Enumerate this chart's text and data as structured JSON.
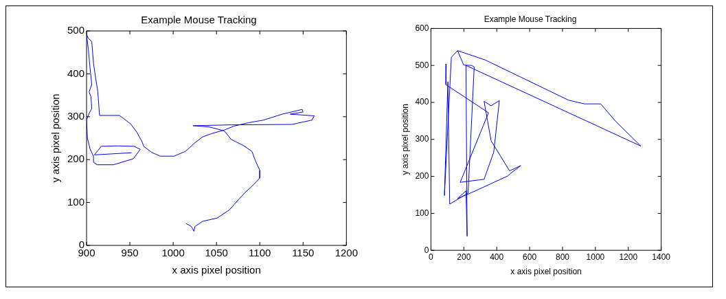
{
  "chart_data": [
    {
      "type": "line",
      "title": "Example Mouse Tracking",
      "xlabel": "x axis pixel position",
      "ylabel": "y axis pixel position",
      "xlim": [
        900,
        1200
      ],
      "xticks": [
        900,
        950,
        1000,
        1050,
        1100,
        1150,
        1200
      ],
      "ylim": [
        0,
        500
      ],
      "yticks": [
        0,
        100,
        200,
        300,
        400,
        500
      ],
      "grid": false,
      "legend": false,
      "marker": "none",
      "series": [
        {
          "color": "#0000ff",
          "x": [
            952,
            909,
            917,
            936,
            955,
            962,
            954,
            931,
            912,
            908,
            908,
            904,
            901,
            900,
            903,
            906,
            905,
            903,
            906,
            904,
            902,
            900,
            902,
            906,
            908,
            910,
            913,
            915,
            938,
            951,
            958,
            964,
            966,
            975,
            985,
            1001,
            1014,
            1025,
            1034,
            1045,
            1059,
            1070,
            1087,
            1104,
            1126,
            1149,
            1150,
            1135,
            1163,
            1160,
            1137,
            1067,
            1023,
            1042,
            1059,
            1067,
            1081,
            1091,
            1095,
            1100,
            1100,
            1093,
            1084,
            1076,
            1065,
            1051,
            1034,
            1025,
            1024,
            1021,
            1015
          ],
          "values": [
            216,
            211,
            231,
            232,
            231,
            224,
            202,
            188,
            188,
            194,
            208,
            225,
            250,
            292,
            308,
            319,
            347,
            358,
            375,
            414,
            458,
            492,
            483,
            475,
            425,
            397,
            358,
            303,
            303,
            283,
            264,
            242,
            231,
            217,
            208,
            208,
            219,
            239,
            253,
            261,
            269,
            278,
            286,
            292,
            306,
            317,
            311,
            306,
            302,
            292,
            282,
            281,
            279,
            276,
            267,
            247,
            233,
            219,
            197,
            175,
            157,
            142,
            125,
            108,
            83,
            64,
            56,
            44,
            33,
            44,
            51
          ]
        }
      ]
    },
    {
      "type": "line",
      "title": "Example Mouse Tracking",
      "xlabel": "x axis pixel position",
      "ylabel": "y axis pixel position",
      "xlim": [
        0,
        1400
      ],
      "xticks": [
        0,
        200,
        400,
        600,
        800,
        1000,
        1200,
        1400
      ],
      "ylim": [
        0,
        600
      ],
      "yticks": [
        0,
        100,
        200,
        300,
        400,
        500,
        600
      ],
      "grid": false,
      "legend": false,
      "marker": "none",
      "series": [
        {
          "color": "#0000ff",
          "x": [
            93,
            91,
            350,
            178,
            323,
            382,
            416,
            366,
            323,
            366,
            478,
            546,
            487,
            467,
            261,
            162,
            213,
            220,
            213,
            1276,
            1125,
            1032,
            933,
            837,
            329,
            162,
            199,
            247,
            263,
            226,
            114,
            103,
            82,
            124,
            162
          ],
          "values": [
            504,
            448,
            372,
            184,
            192,
            266,
            405,
            391,
            403,
            296,
            215,
            229,
            209,
            201,
            159,
            140,
            161,
            38,
            500,
            282,
            348,
            396,
            396,
            406,
            515,
            540,
            501,
            500,
            496,
            155,
            125,
            456,
            148,
            522,
            540
          ]
        }
      ]
    }
  ]
}
